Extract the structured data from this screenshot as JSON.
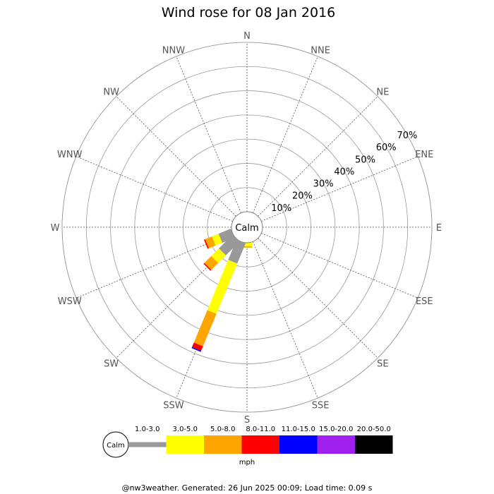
{
  "chart_data": {
    "type": "wind-rose",
    "title": "Wind rose for 08 Jan 2016",
    "center_label": "Calm",
    "directions": [
      "N",
      "NNE",
      "NE",
      "ENE",
      "E",
      "ESE",
      "SE",
      "SSE",
      "S",
      "SSW",
      "SW",
      "WSW",
      "W",
      "WNW",
      "NW",
      "NNW"
    ],
    "rings": [
      "10%",
      "20%",
      "30%",
      "40%",
      "50%",
      "60%",
      "70%"
    ],
    "ring_values": [
      10,
      20,
      30,
      40,
      50,
      60,
      70
    ],
    "rmax_percent": 70,
    "speed_bins": [
      {
        "label": "1.0-3.0",
        "color": "#999999"
      },
      {
        "label": "3.0-5.0",
        "color": "#ffff00"
      },
      {
        "label": "5.0-8.0",
        "color": "#ffa500"
      },
      {
        "label": "8.0-11.0",
        "color": "#ff0000"
      },
      {
        "label": "11.0-15.0",
        "color": "#0000ff"
      },
      {
        "label": "15.0-20.0",
        "color": "#a020f0"
      },
      {
        "label": "20.0-50.0",
        "color": "#000000"
      }
    ],
    "calm_percent": 0,
    "series": [
      {
        "direction": "S",
        "cumulative": [
          0,
          1.5,
          2.0,
          0,
          0,
          0,
          0
        ]
      },
      {
        "direction": "SSW",
        "cumulative": [
          9,
          31.5,
          46.0,
          48.0,
          48.5,
          48.5,
          48.5
        ]
      },
      {
        "direction": "SW",
        "cumulative": [
          8,
          12.5,
          16.5,
          17.0,
          17.0,
          17.0,
          17.0
        ]
      },
      {
        "direction": "WSW",
        "cumulative": [
          5.5,
          8.5,
          11.5,
          12.0,
          12.0,
          12.0,
          12.0
        ]
      }
    ],
    "legend_unit": "mph"
  },
  "footer": "@nw3weather. Generated: 26 Jun 2025 00:09; Load time: 0.09 s"
}
